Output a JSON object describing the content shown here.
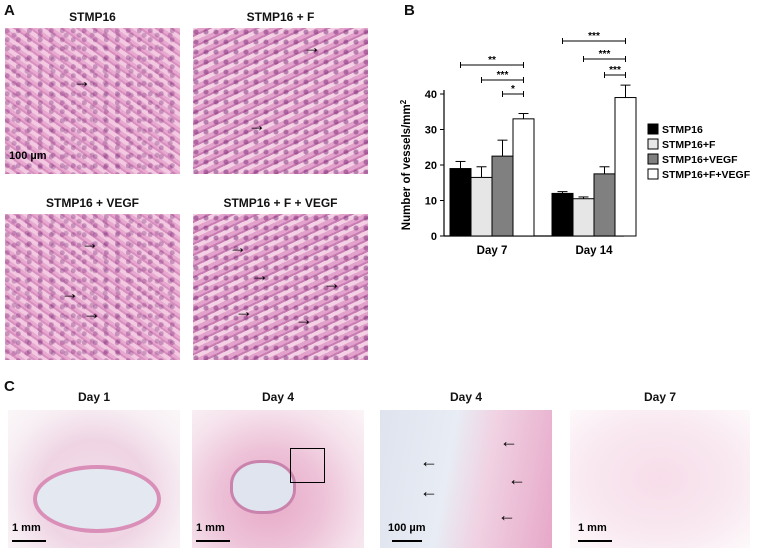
{
  "panel_labels": {
    "a": "A",
    "b": "B",
    "c": "C"
  },
  "panel_a": {
    "titles": [
      "STMP16",
      "STMP16 + F",
      "STMP16 + VEGF",
      "STMP16 + F + VEGF"
    ],
    "scale_label": "100  µm"
  },
  "panel_c": {
    "titles": [
      "Day 1",
      "Day 4",
      "Day 4",
      "Day 7"
    ],
    "scale_labels": [
      "1 mm",
      "1 mm",
      "100  µm",
      "1 mm"
    ]
  },
  "chart_data": {
    "type": "bar",
    "categories": [
      "Day 7",
      "Day 14"
    ],
    "ylabel": "Number of vessels/mm",
    "ylabel_superscript": "2",
    "ylim": [
      0,
      40
    ],
    "yticks": [
      "0",
      "10",
      "20",
      "30",
      "40"
    ],
    "series": [
      {
        "name": "STMP16",
        "color": "#000000",
        "values": [
          19,
          12
        ],
        "errors": [
          2,
          0.5
        ]
      },
      {
        "name": "STMP16+F",
        "color": "#e6e6e6",
        "values": [
          16.5,
          10.5
        ],
        "errors": [
          3,
          0.5
        ]
      },
      {
        "name": "STMP16+VEGF",
        "color": "#808080",
        "values": [
          22.5,
          17.5
        ],
        "errors": [
          4.5,
          2
        ]
      },
      {
        "name": "STMP16+F+VEGF",
        "color": "#ffffff",
        "values": [
          33,
          39
        ],
        "errors": [
          1.5,
          3.5
        ]
      }
    ],
    "significance": [
      {
        "label": "**"
      },
      {
        "label": "***"
      },
      {
        "label": "*"
      },
      {
        "label": "***"
      },
      {
        "label": "***"
      },
      {
        "label": "***"
      }
    ],
    "legend_position": "right"
  }
}
